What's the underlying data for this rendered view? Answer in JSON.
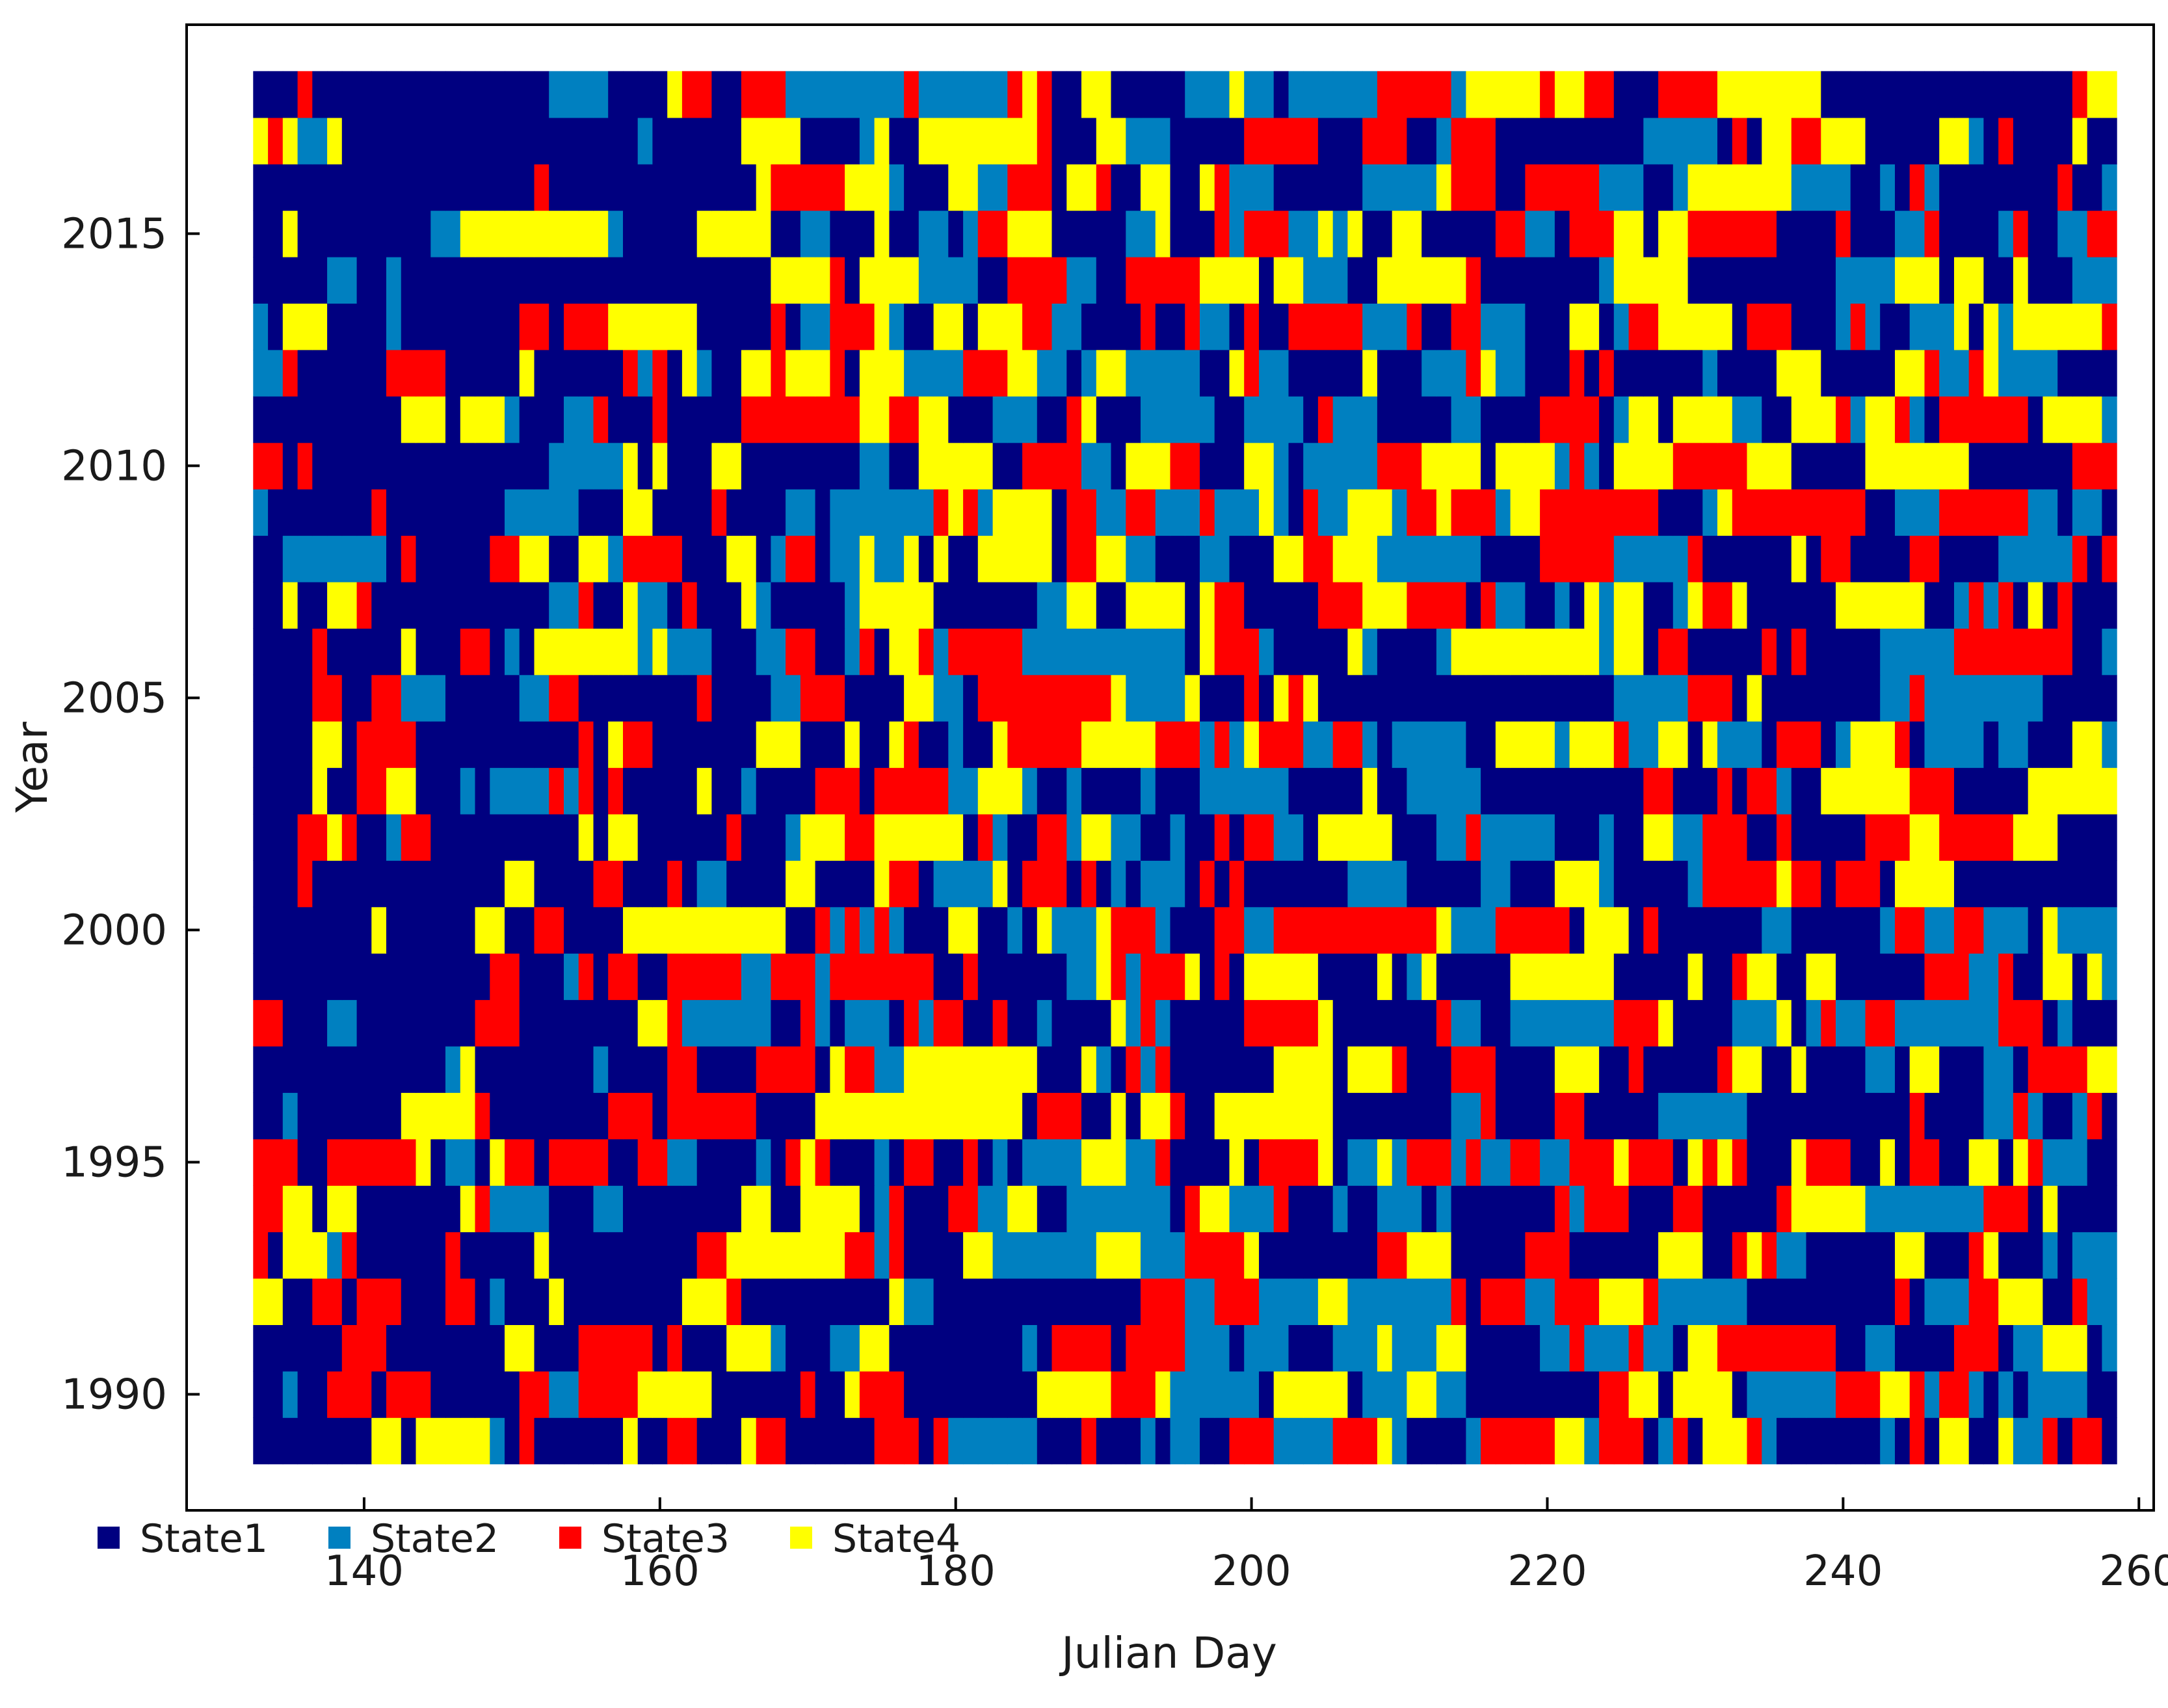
{
  "chart_data": {
    "type": "heatmap",
    "title": "",
    "xlabel": "Julian Day",
    "ylabel": "Year",
    "xlim": [
      128,
      261
    ],
    "ylim": [
      1987.5,
      2019.5
    ],
    "x_ticks": [
      140,
      160,
      180,
      200,
      220,
      240,
      260
    ],
    "y_ticks": [
      1990,
      1995,
      2000,
      2005,
      2010,
      2015
    ],
    "x": {
      "start": 133,
      "end": 258
    },
    "years": {
      "start": 1989,
      "end": 2018
    },
    "grid": false,
    "legend": {
      "position": "bottom-left",
      "entries": [
        {
          "name": "State1",
          "color": "#000080"
        },
        {
          "name": "State2",
          "color": "#0080c0"
        },
        {
          "name": "State3",
          "color": "#ff0000"
        },
        {
          "name": "State4",
          "color": "#ffff00"
        }
      ]
    },
    "state_probabilities_by_day_band": [
      {
        "days": [
          133,
          165
        ],
        "weights": [
          0.66,
          0.08,
          0.15,
          0.11
        ]
      },
      {
        "days": [
          166,
          200
        ],
        "weights": [
          0.36,
          0.2,
          0.21,
          0.23
        ]
      },
      {
        "days": [
          201,
          230
        ],
        "weights": [
          0.36,
          0.24,
          0.2,
          0.2
        ]
      },
      {
        "days": [
          231,
          258
        ],
        "weights": [
          0.4,
          0.22,
          0.2,
          0.18
        ]
      }
    ]
  }
}
